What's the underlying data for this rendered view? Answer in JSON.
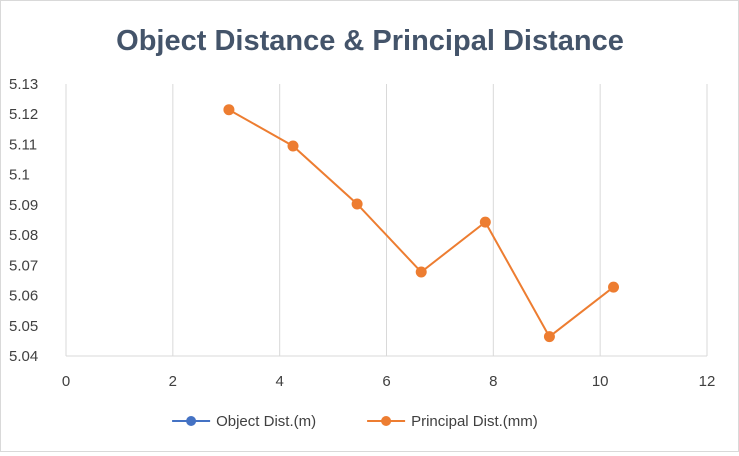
{
  "chart_data": {
    "type": "scatter",
    "title": "Object Distance & Principal Distance",
    "xlim": [
      0,
      12
    ],
    "ylim": [
      5.04,
      5.13
    ],
    "x_ticks": [
      "0",
      "2",
      "4",
      "6",
      "8",
      "10",
      "12"
    ],
    "y_ticks": [
      "5.04",
      "5.05",
      "5.06",
      "5.07",
      "5.08",
      "5.09",
      "5.1",
      "5.11",
      "5.12",
      "5.13"
    ],
    "grid": "vertical major gridlines",
    "legend_position": "bottom",
    "series": [
      {
        "name": "Object Dist.(m)",
        "color": "#4472c4",
        "points": []
      },
      {
        "name": "Principal Dist.(mm)",
        "color": "#ed7d31",
        "points": [
          {
            "x": 3.05,
            "y": 5.1215
          },
          {
            "x": 4.25,
            "y": 5.1095
          },
          {
            "x": 5.45,
            "y": 5.0903
          },
          {
            "x": 6.65,
            "y": 5.0678
          },
          {
            "x": 7.85,
            "y": 5.0843
          },
          {
            "x": 9.05,
            "y": 5.0464
          },
          {
            "x": 10.25,
            "y": 5.0628
          }
        ]
      }
    ]
  }
}
